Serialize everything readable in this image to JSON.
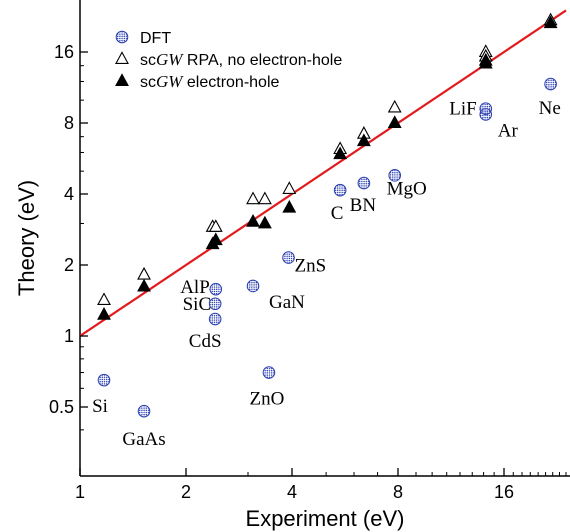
{
  "chart_data": {
    "type": "scatter",
    "xlabel": "Experiment (eV)",
    "ylabel": "Theory (eV)",
    "xscale": "log2",
    "yscale": "log2",
    "xlim": [
      1,
      24
    ],
    "ylim": [
      0.3,
      24
    ],
    "xticks": [
      1,
      2,
      4,
      8,
      16
    ],
    "xtick_labels": [
      "1",
      "2",
      "4",
      "8",
      "16"
    ],
    "yticks": [
      0.5,
      1,
      2,
      4,
      8,
      16
    ],
    "ytick_labels": [
      "0.5",
      "1",
      "2",
      "4",
      "8",
      "16"
    ],
    "grid": false,
    "legend_position": "top-left",
    "legend": [
      {
        "marker": "dotted-circle",
        "pre": "DFT",
        "italic": "",
        "post": ""
      },
      {
        "marker": "open-triangle",
        "pre": "sc",
        "italic": "GW",
        "post": " RPA, no electron-hole"
      },
      {
        "marker": "filled-triangle",
        "pre": "sc",
        "italic": "GW",
        "post": " electron-hole"
      }
    ],
    "reference_line": {
      "description": "y = x",
      "color": "#e31a1c"
    },
    "series": [
      {
        "marker": "dotted-circle",
        "points": [
          {
            "x": 1.17,
            "y": 0.65
          },
          {
            "x": 1.52,
            "y": 0.48
          },
          {
            "x": 2.43,
            "y": 1.58
          },
          {
            "x": 2.42,
            "y": 1.37
          },
          {
            "x": 2.42,
            "y": 1.18
          },
          {
            "x": 3.1,
            "y": 1.63
          },
          {
            "x": 3.44,
            "y": 0.7
          },
          {
            "x": 3.91,
            "y": 2.15
          },
          {
            "x": 5.48,
            "y": 4.15
          },
          {
            "x": 6.4,
            "y": 4.45
          },
          {
            "x": 7.83,
            "y": 4.8
          },
          {
            "x": 14.2,
            "y": 9.2
          },
          {
            "x": 14.2,
            "y": 8.7
          },
          {
            "x": 21.7,
            "y": 11.7
          }
        ]
      },
      {
        "marker": "open-triangle",
        "points": [
          {
            "x": 1.17,
            "y": 1.42
          },
          {
            "x": 1.52,
            "y": 1.82
          },
          {
            "x": 2.38,
            "y": 2.9
          },
          {
            "x": 2.43,
            "y": 2.9
          },
          {
            "x": 3.1,
            "y": 3.8
          },
          {
            "x": 3.35,
            "y": 3.8
          },
          {
            "x": 3.93,
            "y": 4.2
          },
          {
            "x": 5.48,
            "y": 6.2
          },
          {
            "x": 6.4,
            "y": 7.2
          },
          {
            "x": 7.83,
            "y": 9.3
          },
          {
            "x": 14.2,
            "y": 16.0
          },
          {
            "x": 14.2,
            "y": 15.3
          },
          {
            "x": 21.7,
            "y": 21.8
          }
        ]
      },
      {
        "marker": "filled-triangle",
        "points": [
          {
            "x": 1.17,
            "y": 1.23
          },
          {
            "x": 1.52,
            "y": 1.62
          },
          {
            "x": 2.38,
            "y": 2.45
          },
          {
            "x": 2.43,
            "y": 2.55
          },
          {
            "x": 3.1,
            "y": 3.05
          },
          {
            "x": 3.35,
            "y": 3.0
          },
          {
            "x": 3.93,
            "y": 3.5
          },
          {
            "x": 5.48,
            "y": 5.9
          },
          {
            "x": 6.4,
            "y": 6.7
          },
          {
            "x": 7.83,
            "y": 8.0
          },
          {
            "x": 14.2,
            "y": 14.7
          },
          {
            "x": 14.2,
            "y": 14.3
          },
          {
            "x": 21.7,
            "y": 21.2
          }
        ]
      }
    ],
    "annotations": [
      {
        "text": "Si",
        "x": 1.17,
        "y": 0.65
      },
      {
        "text": "GaAs",
        "x": 1.52,
        "y": 0.48
      },
      {
        "text": "AlP",
        "x": 2.43,
        "y": 1.58
      },
      {
        "text": "SiC",
        "x": 2.42,
        "y": 1.37
      },
      {
        "text": "CdS",
        "x": 2.42,
        "y": 1.18
      },
      {
        "text": "GaN",
        "x": 3.1,
        "y": 1.63
      },
      {
        "text": "ZnO",
        "x": 3.44,
        "y": 0.7
      },
      {
        "text": "ZnS",
        "x": 3.91,
        "y": 2.15
      },
      {
        "text": "C",
        "x": 5.48,
        "y": 4.15
      },
      {
        "text": "BN",
        "x": 6.4,
        "y": 4.45
      },
      {
        "text": "MgO",
        "x": 7.83,
        "y": 4.8
      },
      {
        "text": "LiF",
        "x": 14.2,
        "y": 9.2
      },
      {
        "text": "Ar",
        "x": 14.2,
        "y": 8.7
      },
      {
        "text": "Ne",
        "x": 21.7,
        "y": 11.7
      }
    ]
  }
}
